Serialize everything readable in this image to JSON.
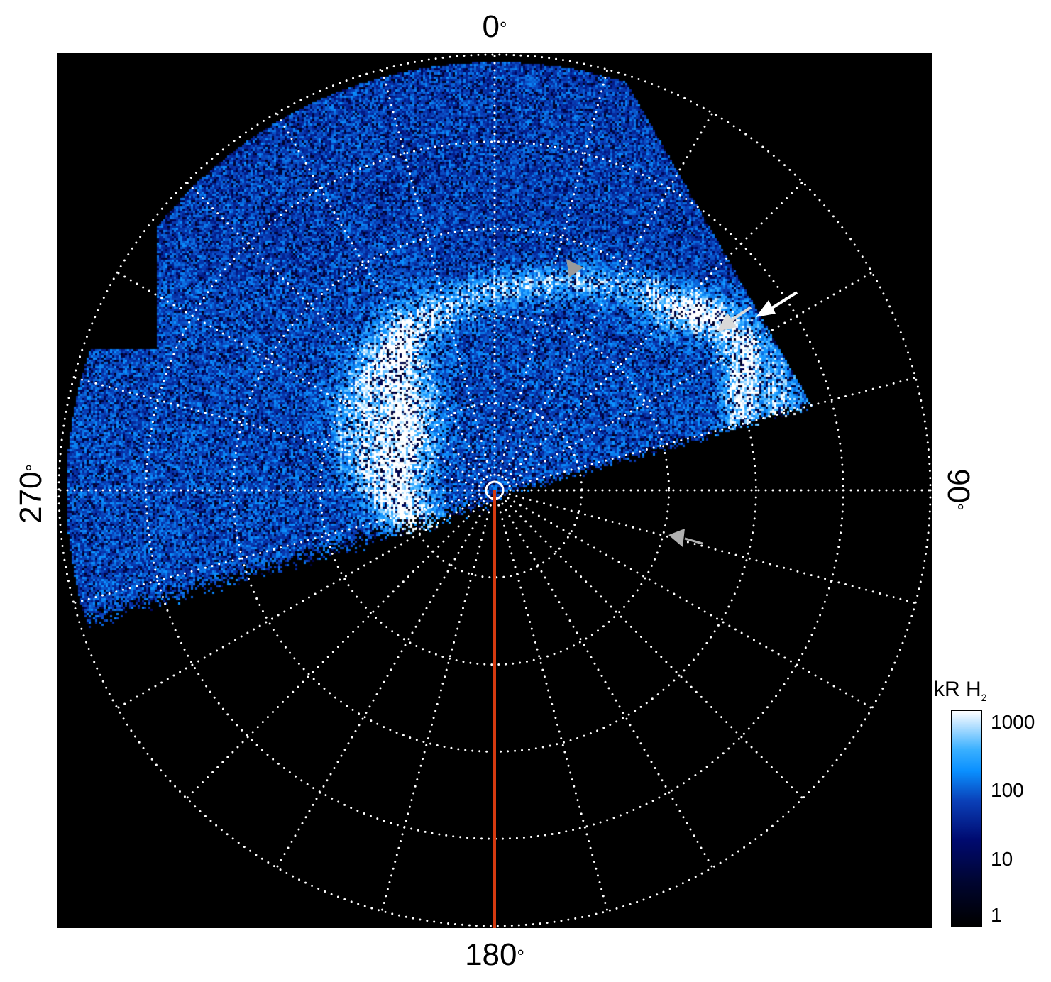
{
  "chart_data": {
    "type": "heatmap",
    "projection": "polar",
    "title": "",
    "angle_labels": {
      "top": "0",
      "right": "90",
      "bottom": "180",
      "left": "270"
    },
    "degree_symbol": "°",
    "radial_gridlines": 5,
    "angular_grid_step_deg": 15,
    "grid": true,
    "grid_style": "dotted white",
    "background": "#000000",
    "reference_line": {
      "angle_deg": 180,
      "color": "#d43a10"
    },
    "colorbar": {
      "title": "kR H",
      "title_subscript": "2",
      "scale": "log",
      "range": [
        1,
        1000
      ],
      "ticks": [
        "1",
        "10",
        "100",
        "1000"
      ],
      "placement": "right",
      "colors": [
        "#000000",
        "#000a70",
        "#0a40b8",
        "#0a90ff",
        "#ffffff"
      ]
    },
    "markers": [
      {
        "type": "triangle",
        "color": "#9a9a9a"
      },
      {
        "type": "arrow",
        "color": "#ffffff"
      },
      {
        "type": "arrow",
        "color": "#d8d8d8"
      },
      {
        "type": "arrow",
        "color": "#b0b0b0"
      }
    ]
  }
}
